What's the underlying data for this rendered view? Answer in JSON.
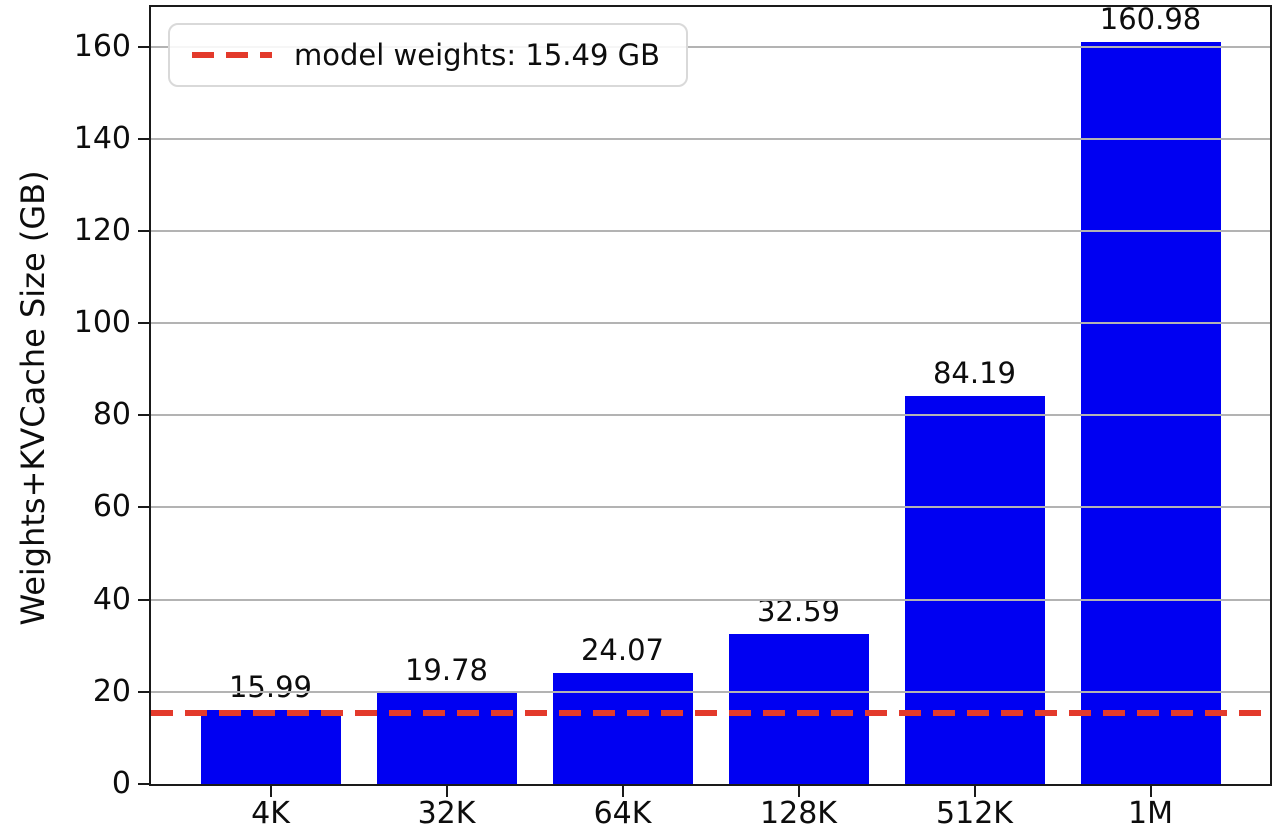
{
  "chart_data": {
    "type": "bar",
    "title": "",
    "categories": [
      "4K",
      "32K",
      "64K",
      "128K",
      "512K",
      "1M"
    ],
    "values": [
      15.99,
      19.78,
      24.07,
      32.59,
      84.19,
      160.98
    ],
    "bar_value_labels": [
      "15.99",
      "19.78",
      "24.07",
      "32.59",
      "84.19",
      "160.98"
    ],
    "xlabel": "",
    "ylabel": "Weights+KVCache Size (GB)",
    "yticks": [
      0,
      20,
      40,
      60,
      80,
      100,
      120,
      140,
      160
    ],
    "ylim": [
      0,
      168.6
    ],
    "grid": {
      "axis": "y",
      "on": true,
      "color": "#b3b3b3",
      "drawn_over_bars": true
    },
    "bar_color": "#0000f2",
    "axis_color": "#1a1a1a",
    "text_color": "#0d0d0d",
    "reference_line": {
      "value": 15.49,
      "style": "dashed",
      "color": "#e33a2b"
    },
    "legend": {
      "position": "upper-left",
      "entries": [
        {
          "label": "model weights: 15.49 GB",
          "line_style": "dashed",
          "color": "#e33a2b"
        }
      ]
    }
  }
}
